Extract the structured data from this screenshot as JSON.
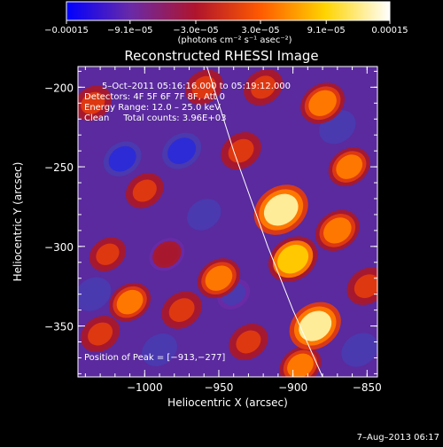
{
  "chart_data": {
    "type": "heatmap",
    "title": "Reconstructed RHESSI Image",
    "xlabel": "Heliocentric X (arcsec)",
    "ylabel": "Heliocentric Y (arcsec)",
    "xlim": [
      -1045,
      -843
    ],
    "ylim": [
      -382,
      -187
    ],
    "x_ticks": [
      -1000,
      -950,
      -900,
      -850
    ],
    "x_tick_labels": [
      "−1000",
      "−950",
      "−900",
      "−850"
    ],
    "y_ticks": [
      -200,
      -250,
      -300,
      -350
    ],
    "y_tick_labels": [
      "−200",
      "−250",
      "−300",
      "−350"
    ],
    "colorbar": {
      "range": [
        -0.00015,
        0.00015
      ],
      "ticks": [
        -0.00015,
        -9.1e-05,
        -3e-05,
        3e-05,
        9.1e-05,
        0.00015
      ],
      "tick_labels": [
        "−0.00015",
        "−9.1e−05",
        "−3.0e−05",
        "3.0e−05",
        "9.1e−05",
        "0.00015"
      ],
      "units": "(photons cm⁻² s⁻¹ asec⁻²)",
      "colors": [
        "#0000ff",
        "#6a2aa6",
        "#b0142c",
        "#ff5a00",
        "#ffd400",
        "#ffffff"
      ]
    },
    "annotations": [
      "5–Oct–2011 05:16:16.000 to 05:19:12.000",
      "Detectors: 4F 5F 6F 7F 8F, Att 0",
      "Energy Range: 12.0 – 25.0 keV",
      "Clean     Total counts: 3.96E+03"
    ],
    "peak_label": "Position of Peak = [−913,−277]",
    "peak": [
      -913,
      -277
    ],
    "limb_curve": [
      [
        -958,
        -187
      ],
      [
        -940,
        -240
      ],
      [
        -917,
        -300
      ],
      [
        -900,
        -340
      ],
      [
        -880,
        -382
      ]
    ],
    "blobs": [
      {
        "x": -908,
        "y": -277,
        "v": 1.0
      },
      {
        "x": -900,
        "y": -308,
        "v": 0.8
      },
      {
        "x": -885,
        "y": -350,
        "v": 0.9
      },
      {
        "x": -870,
        "y": -290,
        "v": 0.6
      },
      {
        "x": -862,
        "y": -250,
        "v": 0.5
      },
      {
        "x": -880,
        "y": -210,
        "v": 0.6
      },
      {
        "x": -935,
        "y": -240,
        "v": 0.45
      },
      {
        "x": -950,
        "y": -320,
        "v": 0.55
      },
      {
        "x": -975,
        "y": -340,
        "v": 0.45
      },
      {
        "x": -1010,
        "y": -335,
        "v": 0.5
      },
      {
        "x": -1030,
        "y": -355,
        "v": 0.4
      },
      {
        "x": -1000,
        "y": -265,
        "v": 0.35
      },
      {
        "x": -960,
        "y": -200,
        "v": 0.35
      },
      {
        "x": -1035,
        "y": -210,
        "v": 0.35
      },
      {
        "x": -1025,
        "y": -305,
        "v": 0.3
      },
      {
        "x": -930,
        "y": -360,
        "v": 0.4
      },
      {
        "x": -895,
        "y": -375,
        "v": 0.5
      },
      {
        "x": -850,
        "y": -325,
        "v": 0.45
      },
      {
        "x": -920,
        "y": -200,
        "v": 0.4
      },
      {
        "x": -985,
        "y": -305,
        "v": 0.25
      },
      {
        "x": -1015,
        "y": -245,
        "v": -0.35
      },
      {
        "x": -975,
        "y": -240,
        "v": -0.4
      },
      {
        "x": -1035,
        "y": -330,
        "v": -0.3
      },
      {
        "x": -990,
        "y": -365,
        "v": -0.25
      },
      {
        "x": -870,
        "y": -225,
        "v": -0.3
      },
      {
        "x": -855,
        "y": -365,
        "v": -0.3
      },
      {
        "x": -960,
        "y": -280,
        "v": -0.2
      },
      {
        "x": -940,
        "y": -330,
        "v": -0.15
      }
    ]
  },
  "footer": {
    "date": "7–Aug–2013 06:17"
  }
}
